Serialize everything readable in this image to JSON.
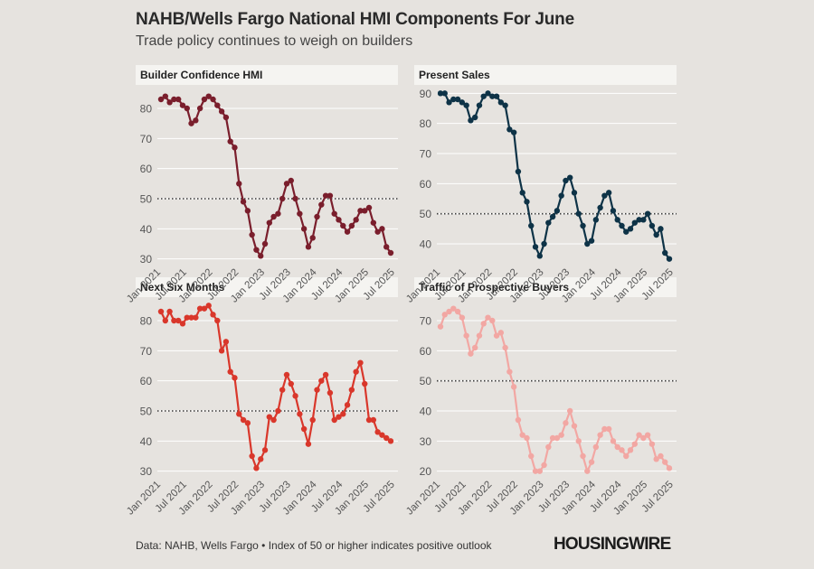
{
  "title": "NAHB/Wells Fargo National HMI Components For June",
  "subtitle": "Trade policy continues to weigh on builders",
  "footer": {
    "note": "Data: NAHB, Wells Fargo • Index of 50 or higher indicates positive outlook",
    "logo": "HOUSINGWIRE"
  },
  "colors": {
    "background": "#e6e3df",
    "grid": "#ffffff",
    "reference_line": "#3a3a3a"
  },
  "chart_data": [
    {
      "type": "line",
      "title": "Builder Confidence HMI",
      "color": "#7a1e2c",
      "x": [
        "Jan 2021",
        "Feb 2021",
        "Mar 2021",
        "Apr 2021",
        "May 2021",
        "Jun 2021",
        "Jul 2021",
        "Aug 2021",
        "Sep 2021",
        "Oct 2021",
        "Nov 2021",
        "Dec 2021",
        "Jan 2022",
        "Feb 2022",
        "Mar 2022",
        "Apr 2022",
        "May 2022",
        "Jun 2022",
        "Jul 2022",
        "Aug 2022",
        "Sep 2022",
        "Oct 2022",
        "Nov 2022",
        "Dec 2022",
        "Jan 2023",
        "Feb 2023",
        "Mar 2023",
        "Apr 2023",
        "May 2023",
        "Jun 2023",
        "Jul 2023",
        "Aug 2023",
        "Sep 2023",
        "Oct 2023",
        "Nov 2023",
        "Dec 2023",
        "Jan 2024",
        "Feb 2024",
        "Mar 2024",
        "Apr 2024",
        "May 2024",
        "Jun 2024",
        "Jul 2024",
        "Aug 2024",
        "Sep 2024",
        "Oct 2024",
        "Nov 2024",
        "Dec 2024",
        "Jan 2025",
        "Feb 2025",
        "Mar 2025",
        "Apr 2025",
        "May 2025",
        "Jun 2025"
      ],
      "values": [
        83,
        84,
        82,
        83,
        83,
        81,
        80,
        75,
        76,
        80,
        83,
        84,
        83,
        81,
        79,
        77,
        69,
        67,
        55,
        49,
        46,
        38,
        33,
        31,
        35,
        42,
        44,
        45,
        50,
        55,
        56,
        50,
        45,
        40,
        34,
        37,
        44,
        48,
        51,
        51,
        45,
        43,
        41,
        39,
        41,
        43,
        46,
        46,
        47,
        42,
        39,
        40,
        34,
        32
      ],
      "reference_line": 50,
      "x_ticks": [
        "Jan 2021",
        "Jul 2021",
        "Jan 2022",
        "Jul 2022",
        "Jan 2023",
        "Jul 2023",
        "Jan 2024",
        "Jul 2024",
        "Jan 2025",
        "Jul 2025"
      ],
      "y_ticks": [
        30,
        40,
        50,
        60,
        70,
        80
      ],
      "ylim": [
        29,
        86
      ],
      "grid": true
    },
    {
      "type": "line",
      "title": "Present Sales",
      "color": "#0e3347",
      "x": [
        "Jan 2021",
        "Feb 2021",
        "Mar 2021",
        "Apr 2021",
        "May 2021",
        "Jun 2021",
        "Jul 2021",
        "Aug 2021",
        "Sep 2021",
        "Oct 2021",
        "Nov 2021",
        "Dec 2021",
        "Jan 2022",
        "Feb 2022",
        "Mar 2022",
        "Apr 2022",
        "May 2022",
        "Jun 2022",
        "Jul 2022",
        "Aug 2022",
        "Sep 2022",
        "Oct 2022",
        "Nov 2022",
        "Dec 2022",
        "Jan 2023",
        "Feb 2023",
        "Mar 2023",
        "Apr 2023",
        "May 2023",
        "Jun 2023",
        "Jul 2023",
        "Aug 2023",
        "Sep 2023",
        "Oct 2023",
        "Nov 2023",
        "Dec 2023",
        "Jan 2024",
        "Feb 2024",
        "Mar 2024",
        "Apr 2024",
        "May 2024",
        "Jun 2024",
        "Jul 2024",
        "Aug 2024",
        "Sep 2024",
        "Oct 2024",
        "Nov 2024",
        "Dec 2024",
        "Jan 2025",
        "Feb 2025",
        "Mar 2025",
        "Apr 2025",
        "May 2025",
        "Jun 2025"
      ],
      "values": [
        90,
        90,
        87,
        88,
        88,
        87,
        86,
        81,
        82,
        86,
        89,
        90,
        89,
        89,
        87,
        86,
        78,
        77,
        64,
        57,
        54,
        46,
        39,
        36,
        40,
        47,
        49,
        51,
        56,
        61,
        62,
        57,
        50,
        46,
        40,
        41,
        48,
        52,
        56,
        57,
        51,
        48,
        46,
        44,
        45,
        47,
        48,
        48,
        50,
        46,
        43,
        45,
        37,
        35
      ],
      "reference_line": 50,
      "x_ticks": [
        "Jan 2021",
        "Jul 2021",
        "Jan 2022",
        "Jul 2022",
        "Jan 2023",
        "Jul 2023",
        "Jan 2024",
        "Jul 2024",
        "Jan 2025",
        "Jul 2025"
      ],
      "y_ticks": [
        40,
        50,
        60,
        70,
        80,
        90
      ],
      "ylim": [
        34,
        91
      ],
      "grid": true
    },
    {
      "type": "line",
      "title": "Next Six Months",
      "color": "#d9372b",
      "x": [
        "Jan 2021",
        "Feb 2021",
        "Mar 2021",
        "Apr 2021",
        "May 2021",
        "Jun 2021",
        "Jul 2021",
        "Aug 2021",
        "Sep 2021",
        "Oct 2021",
        "Nov 2021",
        "Dec 2021",
        "Jan 2022",
        "Feb 2022",
        "Mar 2022",
        "Apr 2022",
        "May 2022",
        "Jun 2022",
        "Jul 2022",
        "Aug 2022",
        "Sep 2022",
        "Oct 2022",
        "Nov 2022",
        "Dec 2022",
        "Jan 2023",
        "Feb 2023",
        "Mar 2023",
        "Apr 2023",
        "May 2023",
        "Jun 2023",
        "Jul 2023",
        "Aug 2023",
        "Sep 2023",
        "Oct 2023",
        "Nov 2023",
        "Dec 2023",
        "Jan 2024",
        "Feb 2024",
        "Mar 2024",
        "Apr 2024",
        "May 2024",
        "Jun 2024",
        "Jul 2024",
        "Aug 2024",
        "Sep 2024",
        "Oct 2024",
        "Nov 2024",
        "Dec 2024",
        "Jan 2025",
        "Feb 2025",
        "Mar 2025",
        "Apr 2025",
        "May 2025",
        "Jun 2025"
      ],
      "values": [
        83,
        80,
        83,
        80,
        80,
        79,
        81,
        81,
        81,
        84,
        84,
        85,
        82,
        80,
        70,
        73,
        63,
        61,
        49,
        47,
        46,
        35,
        31,
        34,
        37,
        48,
        47,
        50,
        57,
        62,
        59,
        55,
        49,
        44,
        39,
        47,
        57,
        60,
        62,
        56,
        47,
        48,
        49,
        52,
        57,
        63,
        66,
        59,
        47,
        47,
        43,
        42,
        41,
        40
      ],
      "reference_line": 50,
      "x_ticks": [
        "Jan 2021",
        "Jul 2021",
        "Jan 2022",
        "Jul 2022",
        "Jan 2023",
        "Jul 2023",
        "Jan 2024",
        "Jul 2024",
        "Jan 2025",
        "Jul 2025"
      ],
      "y_ticks": [
        30,
        40,
        50,
        60,
        70,
        80
      ],
      "ylim": [
        29,
        86
      ],
      "grid": true
    },
    {
      "type": "line",
      "title": "Traffic of Prospective Buyers",
      "color": "#f2a7a3",
      "x": [
        "Jan 2021",
        "Feb 2021",
        "Mar 2021",
        "Apr 2021",
        "May 2021",
        "Jun 2021",
        "Jul 2021",
        "Aug 2021",
        "Sep 2021",
        "Oct 2021",
        "Nov 2021",
        "Dec 2021",
        "Jan 2022",
        "Feb 2022",
        "Mar 2022",
        "Apr 2022",
        "May 2022",
        "Jun 2022",
        "Jul 2022",
        "Aug 2022",
        "Sep 2022",
        "Oct 2022",
        "Nov 2022",
        "Dec 2022",
        "Jan 2023",
        "Feb 2023",
        "Mar 2023",
        "Apr 2023",
        "May 2023",
        "Jun 2023",
        "Jul 2023",
        "Aug 2023",
        "Sep 2023",
        "Oct 2023",
        "Nov 2023",
        "Dec 2023",
        "Jan 2024",
        "Feb 2024",
        "Mar 2024",
        "Apr 2024",
        "May 2024",
        "Jun 2024",
        "Jul 2024",
        "Aug 2024",
        "Sep 2024",
        "Oct 2024",
        "Nov 2024",
        "Dec 2024",
        "Jan 2025",
        "Feb 2025",
        "Mar 2025",
        "Apr 2025",
        "May 2025",
        "Jun 2025"
      ],
      "values": [
        68,
        72,
        73,
        74,
        73,
        71,
        65,
        59,
        61,
        65,
        69,
        71,
        70,
        65,
        66,
        61,
        53,
        48,
        37,
        32,
        31,
        25,
        20,
        20,
        22,
        28,
        31,
        31,
        32,
        36,
        40,
        35,
        30,
        25,
        20,
        23,
        28,
        32,
        34,
        34,
        30,
        28,
        27,
        25,
        27,
        29,
        32,
        31,
        32,
        29,
        24,
        25,
        23,
        21
      ],
      "reference_line": 50,
      "x_ticks": [
        "Jan 2021",
        "Jul 2021",
        "Jan 2022",
        "Jul 2022",
        "Jan 2023",
        "Jul 2023",
        "Jan 2024",
        "Jul 2024",
        "Jan 2025",
        "Jul 2025"
      ],
      "y_ticks": [
        20,
        30,
        40,
        50,
        60,
        70
      ],
      "ylim": [
        19,
        76
      ],
      "grid": true
    }
  ]
}
